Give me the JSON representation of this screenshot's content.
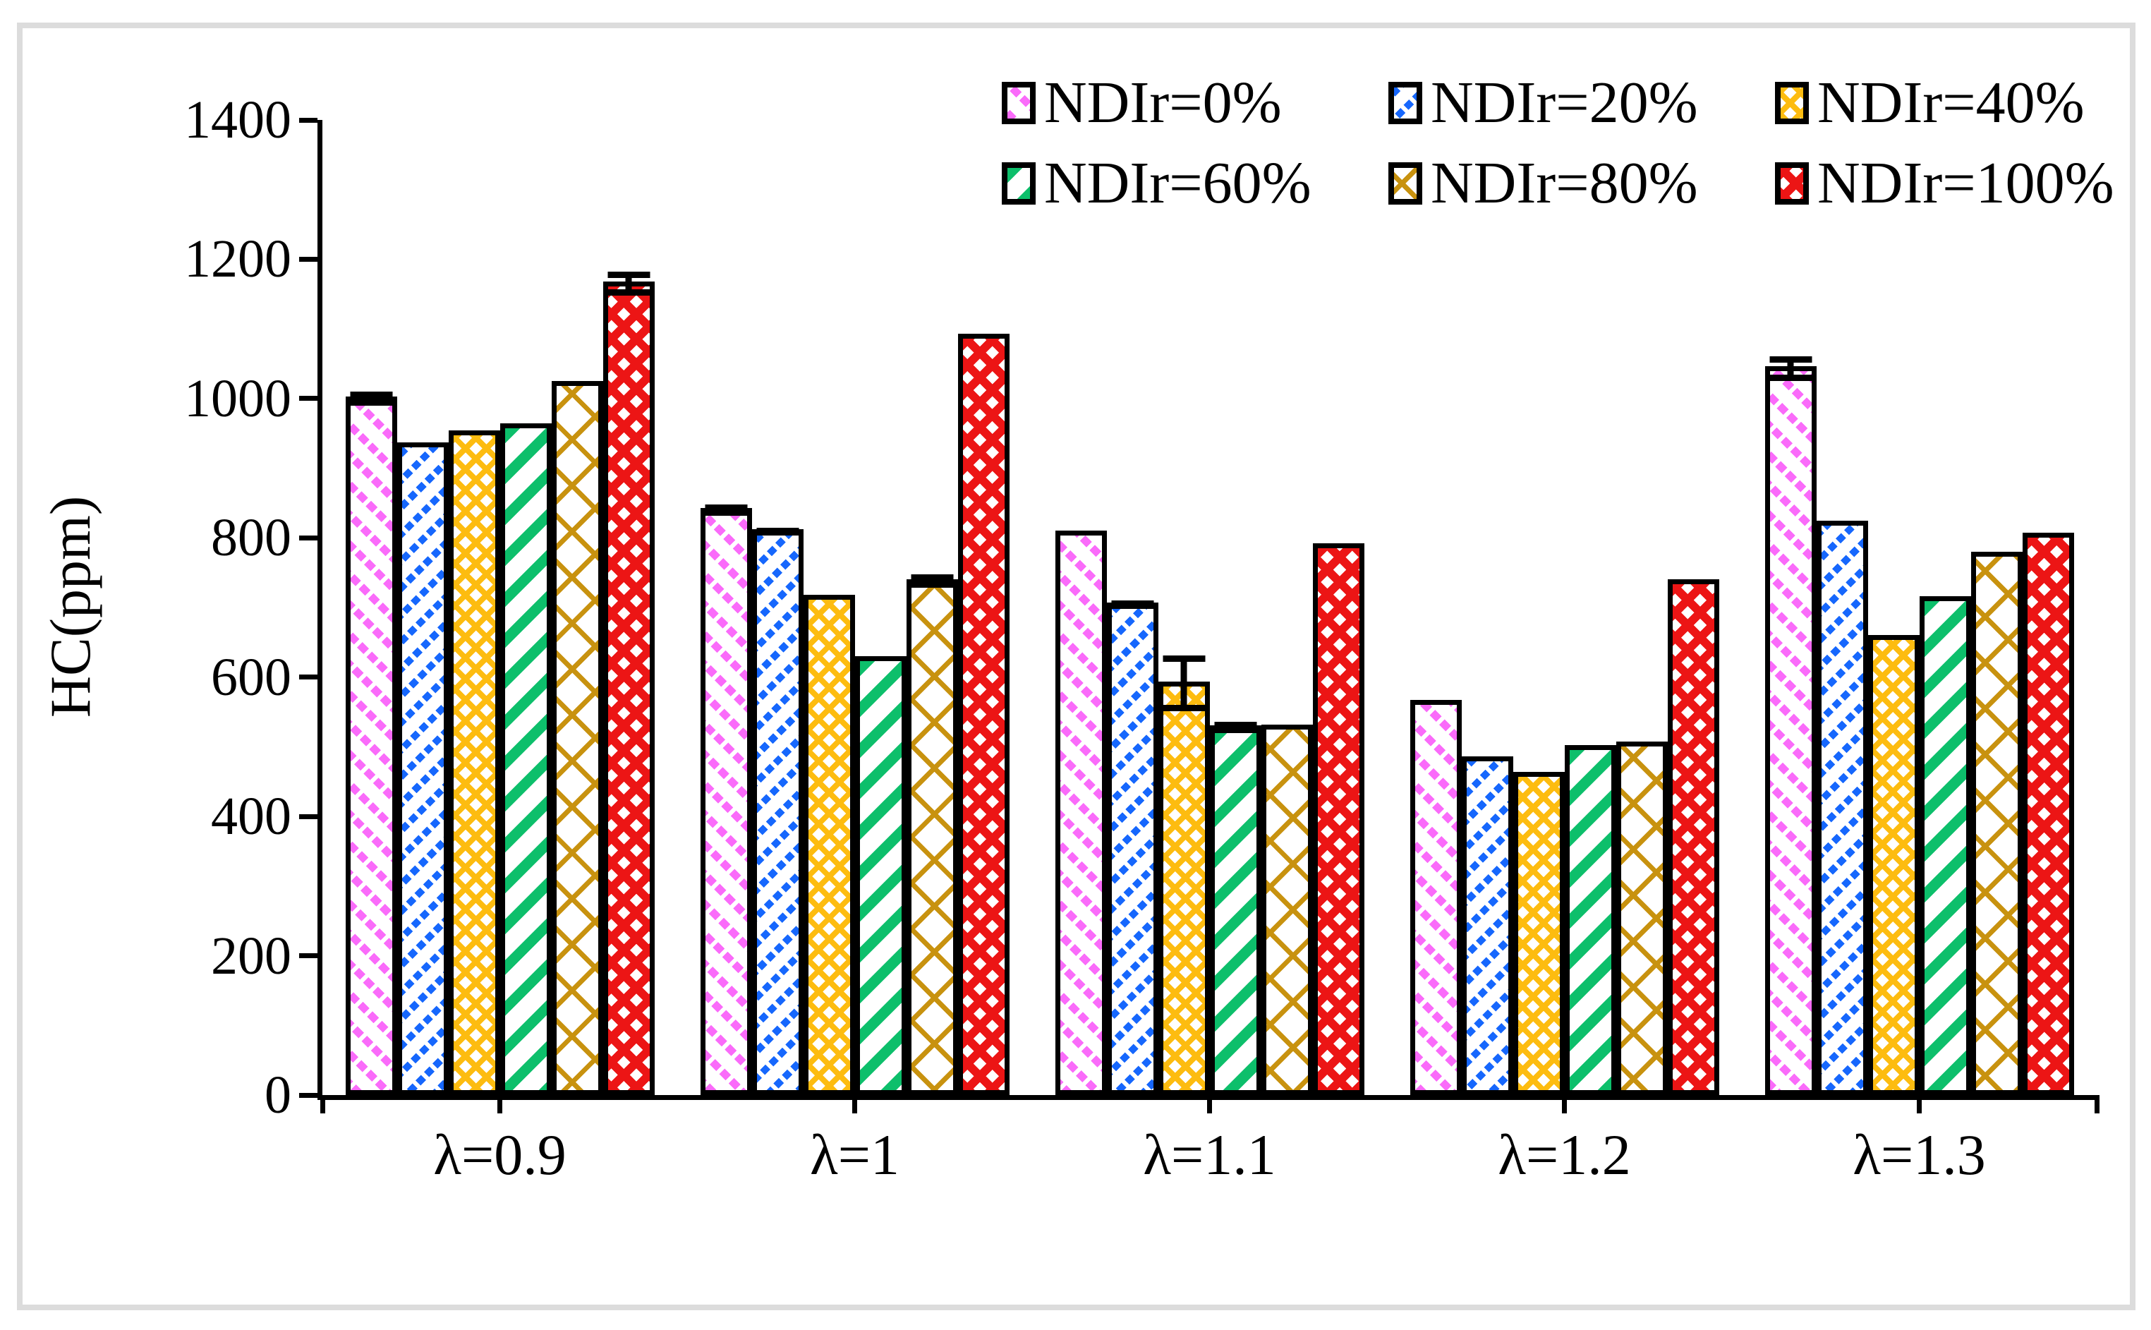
{
  "chart_data": {
    "type": "bar",
    "title": "",
    "xlabel": "",
    "ylabel": "HC(ppm)",
    "ylim": [
      0,
      1400
    ],
    "yticks": [
      0,
      200,
      400,
      600,
      800,
      1000,
      1200,
      1400
    ],
    "grid": false,
    "legend_position": "top-right-inside",
    "legend_rows": 2,
    "categories": [
      "λ=0.9",
      "λ=1",
      "λ=1.1",
      "λ=1.2",
      "λ=1.3"
    ],
    "series": [
      {
        "name": "NDIr=0%",
        "color": "#FA6BFA",
        "pattern": "dashed-diagonal-down",
        "values": [
          1003,
          843,
          810,
          567,
          1046
        ],
        "errors": [
          10,
          8,
          0,
          0,
          18
        ]
      },
      {
        "name": "NDIr=20%",
        "color": "#1667FD",
        "pattern": "dashed-diagonal-up",
        "values": [
          937,
          812,
          707,
          486,
          825
        ],
        "errors": [
          0,
          6,
          6,
          0,
          0
        ]
      },
      {
        "name": "NDIr=40%",
        "color": "#FDBC10",
        "pattern": "diamond-checker",
        "values": [
          954,
          718,
          594,
          464,
          661
        ],
        "errors": [
          0,
          0,
          40,
          0,
          0
        ]
      },
      {
        "name": "NDIr=60%",
        "color": "#0DBF6B",
        "pattern": "thick-diagonal-up",
        "values": [
          964,
          630,
          531,
          502,
          716
        ],
        "errors": [
          0,
          0,
          8,
          0,
          0
        ]
      },
      {
        "name": "NDIr=80%",
        "color": "#C8920F",
        "pattern": "diamond-lattice",
        "values": [
          1025,
          741,
          532,
          508,
          780
        ],
        "errors": [
          0,
          10,
          0,
          0,
          0
        ]
      },
      {
        "name": "NDIr=100%",
        "color": "#EC1515",
        "pattern": "checker",
        "values": [
          1168,
          1093,
          792,
          741,
          807
        ],
        "errors": [
          17,
          0,
          0,
          0,
          0
        ]
      }
    ]
  },
  "frame": {
    "border_color": "#DCDCDC"
  }
}
